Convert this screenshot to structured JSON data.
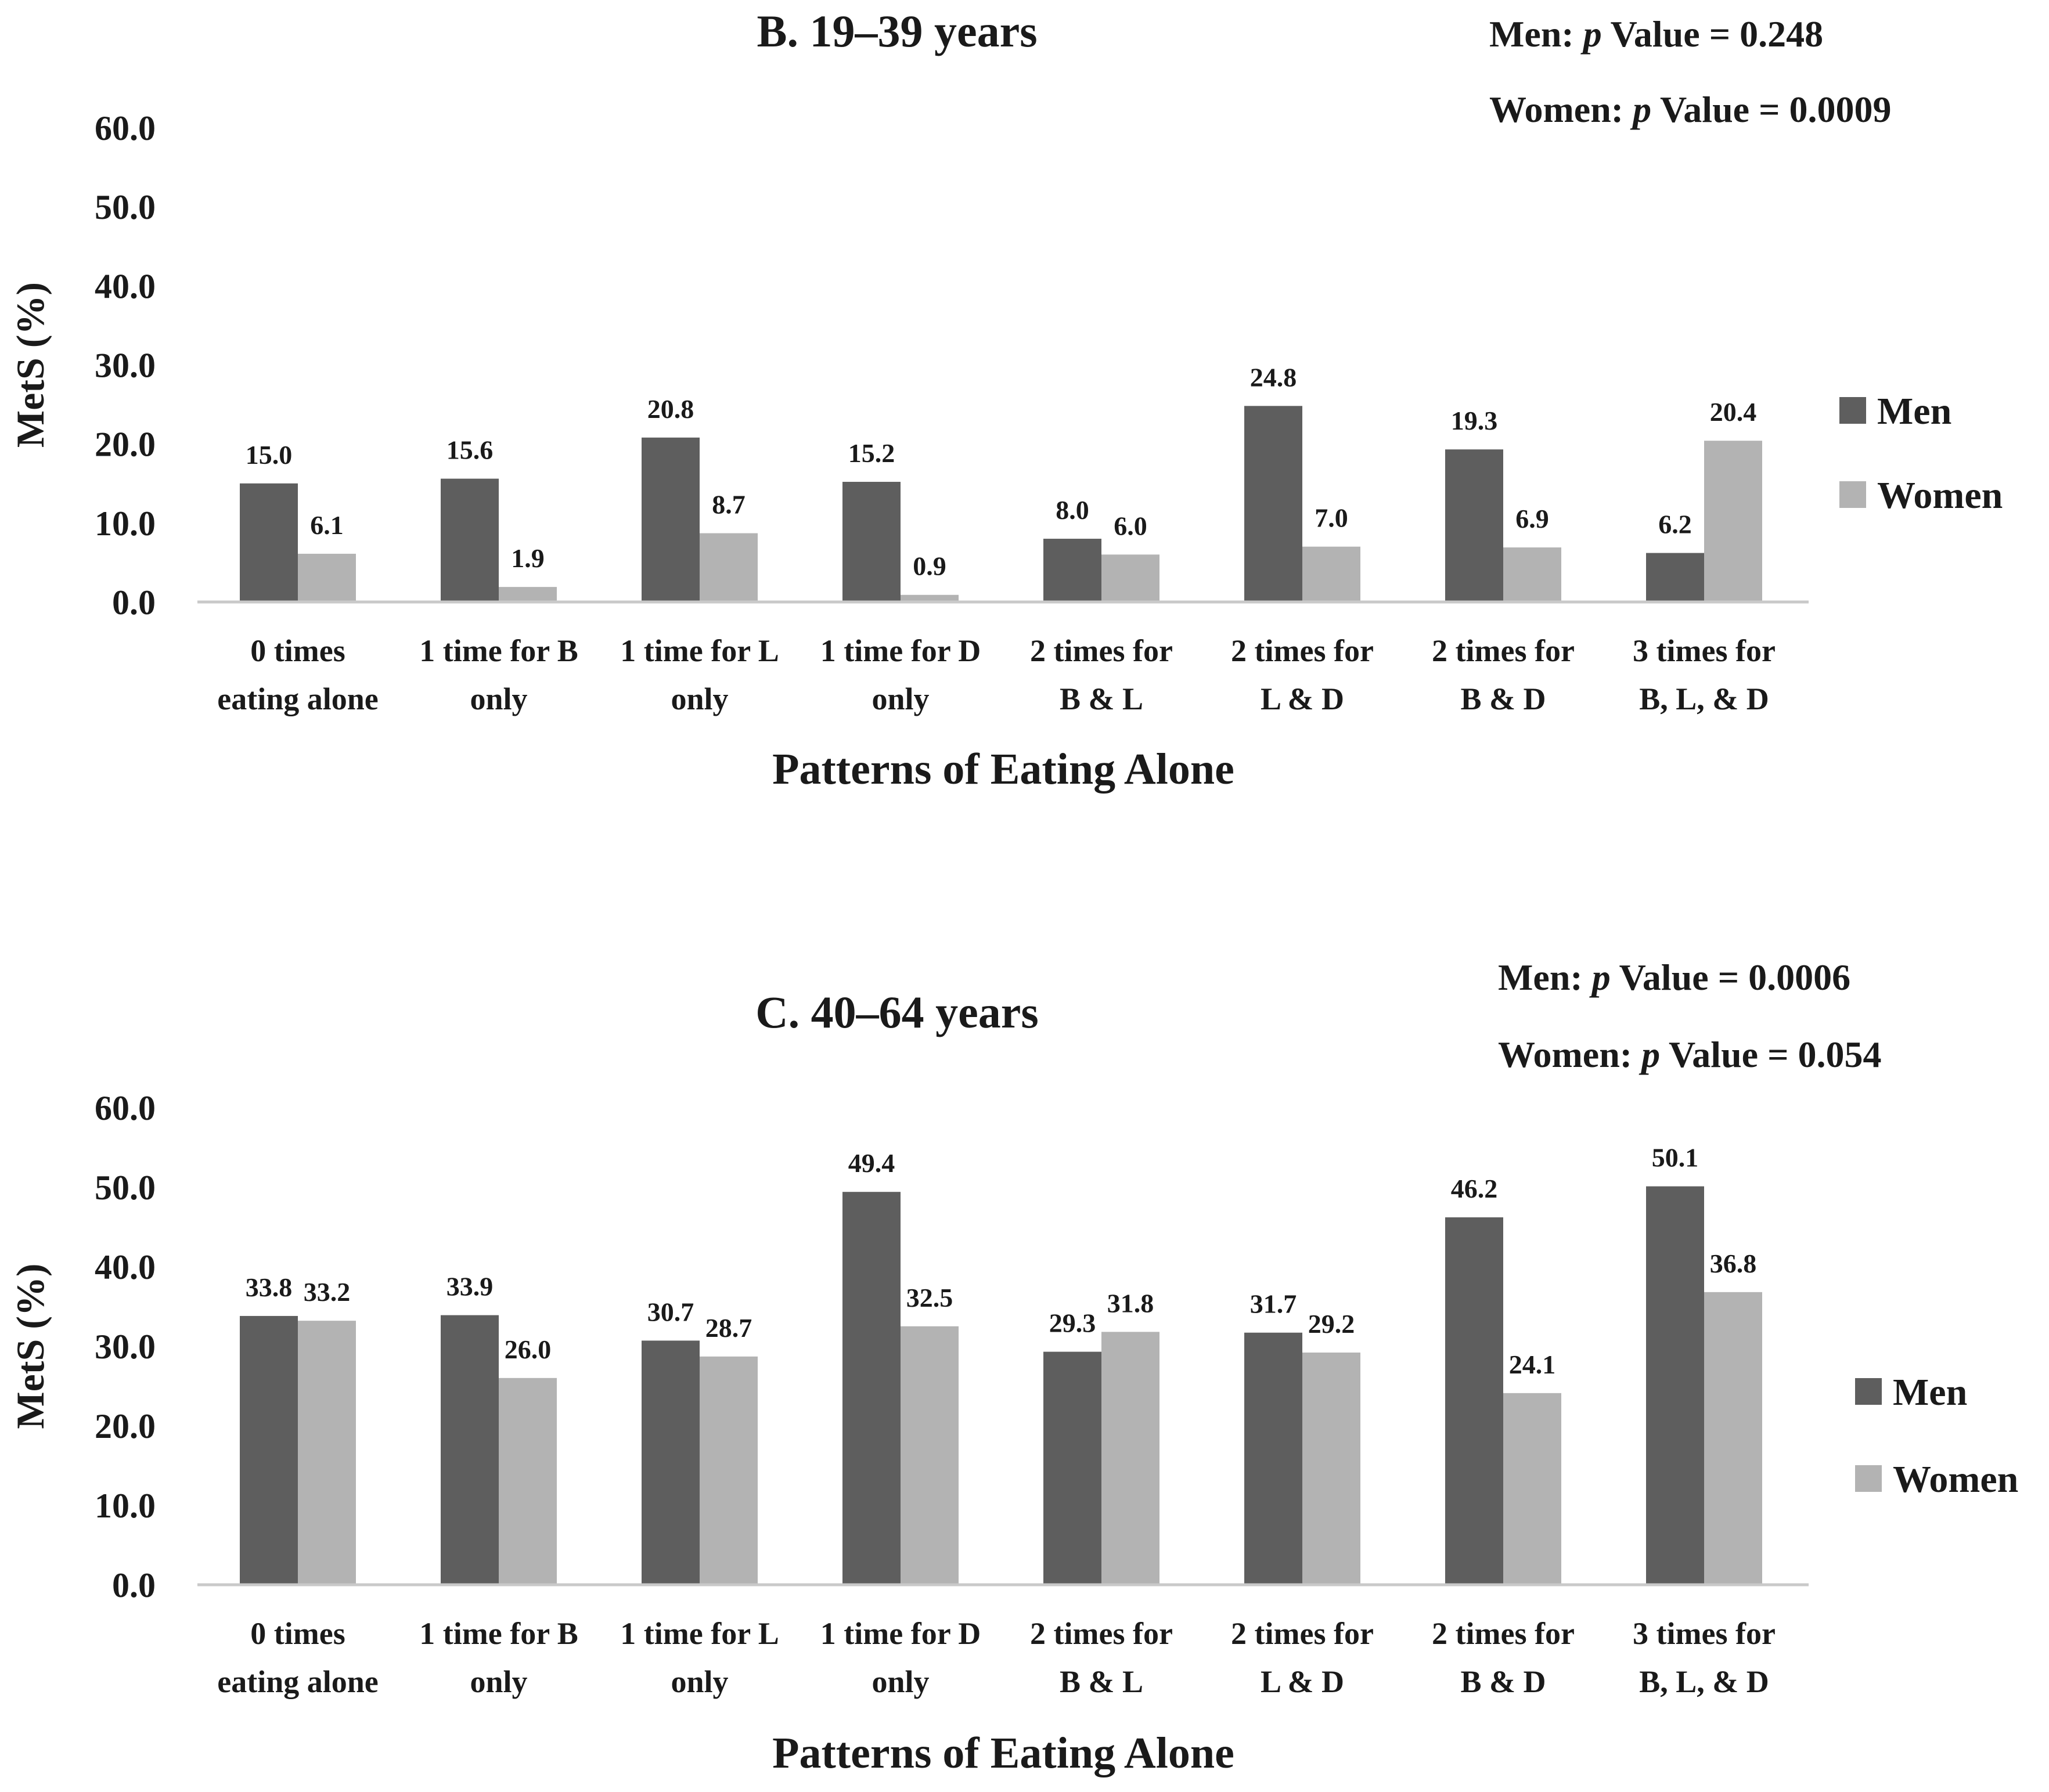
{
  "colors": {
    "men": "#5e5e5e",
    "women": "#b3b3b3",
    "axis": "#c9c9c9"
  },
  "chart_data": [
    {
      "type": "bar",
      "title": "B. 19–39 years",
      "annotations": [
        {
          "sex": "Men:",
          "p": "p",
          "rest": "Value = 0.248"
        },
        {
          "sex": "Women:",
          "p": "p",
          "rest": "Value = 0.0009"
        }
      ],
      "categories": [
        [
          "0 times",
          "eating alone"
        ],
        [
          "1 time for B",
          "only"
        ],
        [
          "1 time for L",
          "only"
        ],
        [
          "1 time for D",
          "only"
        ],
        [
          "2 times for",
          "B & L"
        ],
        [
          "2 times for",
          "L & D"
        ],
        [
          "2 times for",
          "B & D"
        ],
        [
          "3 times for",
          "B, L, & D"
        ]
      ],
      "series": [
        {
          "name": "Men",
          "values": [
            15.0,
            15.6,
            20.8,
            15.2,
            8.0,
            24.8,
            19.3,
            6.2
          ],
          "labels": [
            "15.0",
            "15.6",
            "20.8",
            "15.2",
            "8.0",
            "24.8",
            "19.3",
            "6.2"
          ]
        },
        {
          "name": "Women",
          "values": [
            6.1,
            1.9,
            8.7,
            0.9,
            6.0,
            7.0,
            6.9,
            20.4
          ],
          "labels": [
            "6.1",
            "1.9",
            "8.7",
            "0.9",
            "6.0",
            "7.0",
            "6.9",
            "20.4"
          ]
        }
      ],
      "xlabel": "Patterns of Eating Alone",
      "ylabel": "MetS (%)",
      "ylim": [
        0,
        60
      ],
      "yticks": [
        "0.0",
        "10.0",
        "20.0",
        "30.0",
        "40.0",
        "50.0",
        "60.0"
      ],
      "grid": false,
      "legend": "right"
    },
    {
      "type": "bar",
      "title": "C. 40–64 years",
      "annotations": [
        {
          "sex": "Men:",
          "p": "p",
          "rest": "Value = 0.0006"
        },
        {
          "sex": "Women:",
          "p": "p",
          "rest": "Value = 0.054"
        }
      ],
      "categories": [
        [
          "0 times",
          "eating alone"
        ],
        [
          "1 time for B",
          "only"
        ],
        [
          "1 time for L",
          "only"
        ],
        [
          "1 time for D",
          "only"
        ],
        [
          "2 times for",
          "B & L"
        ],
        [
          "2 times for",
          "L & D"
        ],
        [
          "2 times for",
          "B & D"
        ],
        [
          "3 times for",
          "B, L, & D"
        ]
      ],
      "series": [
        {
          "name": "Men",
          "values": [
            33.8,
            33.9,
            30.7,
            49.4,
            29.3,
            31.7,
            46.2,
            50.1
          ],
          "labels": [
            "33.8",
            "33.9",
            "30.7",
            "49.4",
            "29.3",
            "31.7",
            "46.2",
            "50.1"
          ]
        },
        {
          "name": "Women",
          "values": [
            33.2,
            26.0,
            28.7,
            32.5,
            31.8,
            29.2,
            24.1,
            36.8
          ],
          "labels": [
            "33.2",
            "26.0",
            "28.7",
            "32.5",
            "31.8",
            "29.2",
            "24.1",
            "36.8"
          ]
        }
      ],
      "xlabel": "Patterns of Eating Alone",
      "ylabel": "MetS (%)",
      "ylim": [
        0,
        60
      ],
      "yticks": [
        "0.0",
        "10.0",
        "20.0",
        "30.0",
        "40.0",
        "50.0",
        "60.0"
      ],
      "grid": false,
      "legend": "right"
    }
  ]
}
